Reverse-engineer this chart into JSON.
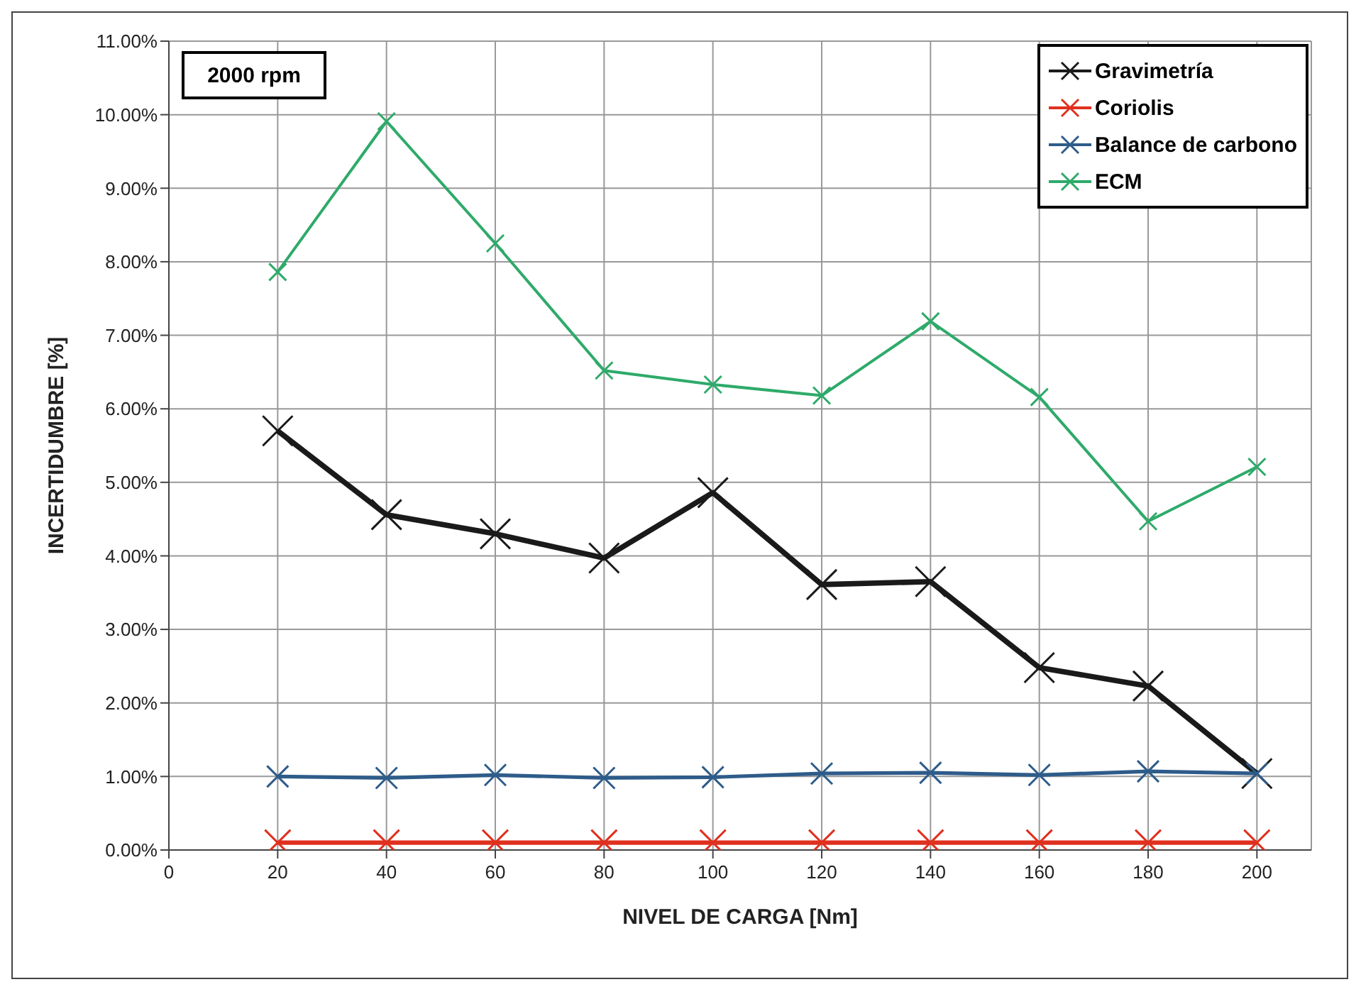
{
  "chart_data": {
    "type": "line",
    "xlabel": "NIVEL DE CARGA [Nm]",
    "ylabel": "INCERTIDUMBRE [%]",
    "annotations": [
      "2000 rpm"
    ],
    "x": [
      20,
      40,
      60,
      80,
      100,
      120,
      140,
      160,
      180,
      200
    ],
    "series": [
      {
        "name": "Gravimetría",
        "color": "#1a1a1a",
        "values": [
          5.7,
          4.56,
          4.3,
          3.97,
          4.86,
          3.61,
          3.65,
          2.48,
          2.23,
          1.04
        ]
      },
      {
        "name": "Coriolis",
        "color": "#e0301e",
        "values": [
          0.1,
          0.1,
          0.1,
          0.1,
          0.1,
          0.1,
          0.1,
          0.1,
          0.1,
          0.1
        ]
      },
      {
        "name": "Balance de carbono",
        "color": "#2e5c8a",
        "values": [
          1.0,
          0.98,
          1.02,
          0.98,
          0.99,
          1.04,
          1.05,
          1.02,
          1.07,
          1.04
        ]
      },
      {
        "name": "ECM",
        "color": "#2eaa6a",
        "values": [
          7.86,
          9.91,
          8.25,
          6.52,
          6.33,
          6.18,
          7.19,
          6.16,
          4.47,
          5.21
        ]
      }
    ],
    "xlim": [
      0,
      210
    ],
    "xticks": [
      0,
      20,
      40,
      60,
      80,
      100,
      120,
      140,
      160,
      180,
      200
    ],
    "ylim": [
      0,
      11
    ],
    "yticks": [
      {
        "value": 0,
        "label": "0.00%"
      },
      {
        "value": 1,
        "label": "1.00%"
      },
      {
        "value": 2,
        "label": "2.00%"
      },
      {
        "value": 3,
        "label": "3.00%"
      },
      {
        "value": 4,
        "label": "4.00%"
      },
      {
        "value": 5,
        "label": "5.00%"
      },
      {
        "value": 6,
        "label": "6.00%"
      },
      {
        "value": 7,
        "label": "7.00%"
      },
      {
        "value": 8,
        "label": "8.00%"
      },
      {
        "value": 9,
        "label": "9.00%"
      },
      {
        "value": 10,
        "label": "10.00%"
      },
      {
        "value": 11,
        "label": "11.00%"
      }
    ],
    "grid": true,
    "legend": "top right",
    "marker": "cross",
    "line_style": "solid"
  }
}
